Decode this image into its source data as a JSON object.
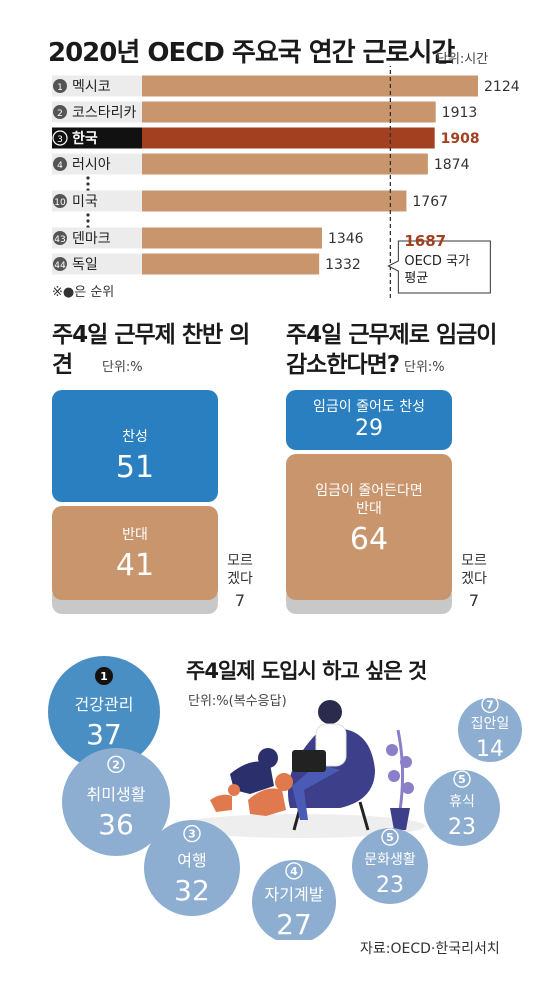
{
  "chart_data": [
    {
      "type": "bar",
      "title": "2020년 OECD 주요국 연간 근로시간",
      "unit": "단위:시간",
      "categories": [
        "멕시코",
        "코스타리카",
        "한국",
        "러시아",
        "미국",
        "덴마크",
        "독일"
      ],
      "ranks": [
        "1",
        "2",
        "3",
        "4",
        "10",
        "43",
        "44"
      ],
      "values": [
        2124,
        1913,
        1908,
        1874,
        1767,
        1346,
        1332
      ],
      "highlight": "한국",
      "average": {
        "value": 1687,
        "label": "OECD 국가 평균",
        "value_text": "1687"
      },
      "note": "※●은 순위",
      "colors": {
        "bar": "#c8956c",
        "highlight": "#a3401f",
        "highlight_value": "#a3401f"
      }
    },
    {
      "type": "stacked-bar",
      "title": "주4일 근무제 찬반 의견",
      "unit": "단위:%",
      "segments": [
        {
          "name": "찬성",
          "value": 51,
          "color": "#2a7fc0"
        },
        {
          "name": "반대",
          "value": 41,
          "color": "#c8956c"
        },
        {
          "name": "모르겠다",
          "value": 7,
          "color": "#c8c8c8"
        }
      ]
    },
    {
      "type": "stacked-bar",
      "title": "주4일 근무제로 임금이 감소한다면?",
      "unit": "단위:%",
      "segments": [
        {
          "name": "임금이 줄어도 찬성",
          "value": 29,
          "color": "#2a7fc0"
        },
        {
          "name": "임금이 줄어든다면 반대",
          "value": 64,
          "color": "#c8956c"
        },
        {
          "name": "모르겠다",
          "value": 7,
          "color": "#c8c8c8"
        }
      ]
    },
    {
      "type": "bubble",
      "title": "주4일제 도입시 하고 싶은 것",
      "unit": "단위:%(복수응답)",
      "items": [
        {
          "rank": "1",
          "name": "건강관리",
          "value": 37
        },
        {
          "rank": "2",
          "name": "취미생활",
          "value": 36
        },
        {
          "rank": "3",
          "name": "여행",
          "value": 32
        },
        {
          "rank": "4",
          "name": "자기계발",
          "value": 27
        },
        {
          "rank": "5",
          "name": "문화생활",
          "value": 23
        },
        {
          "rank": "5",
          "name": "휴식",
          "value": 23
        },
        {
          "rank": "7",
          "name": "집안일",
          "value": 14
        }
      ],
      "colors": {
        "top": "#4a8fc4",
        "rest": "#8daed0"
      }
    }
  ],
  "labels": {
    "support_pie_unknown": "모르\n겠다",
    "support_unknown_value": "7"
  },
  "source": "자료:OECD·한국리서치"
}
